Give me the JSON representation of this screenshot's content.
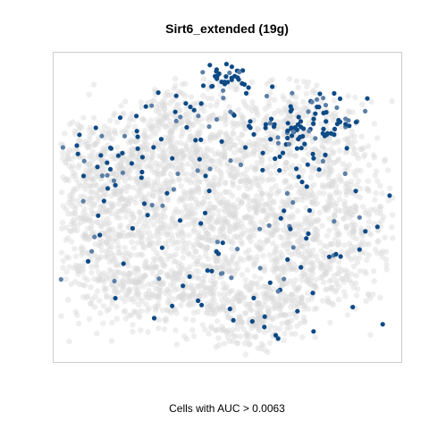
{
  "chart_data": {
    "type": "scatter",
    "title": "Sirt6_extended (19g)",
    "xlabel": "Cells with AUC > 0.0063",
    "ylabel": "",
    "grid": false,
    "legend": "none",
    "background_color": "#ffffff",
    "frame_color": "#cccccc",
    "colors": {
      "background_cells": "#d9d9d9",
      "high_auc_cells": "#0d4a86",
      "mid_auc_cells": "#5b7fa6"
    }
  }
}
